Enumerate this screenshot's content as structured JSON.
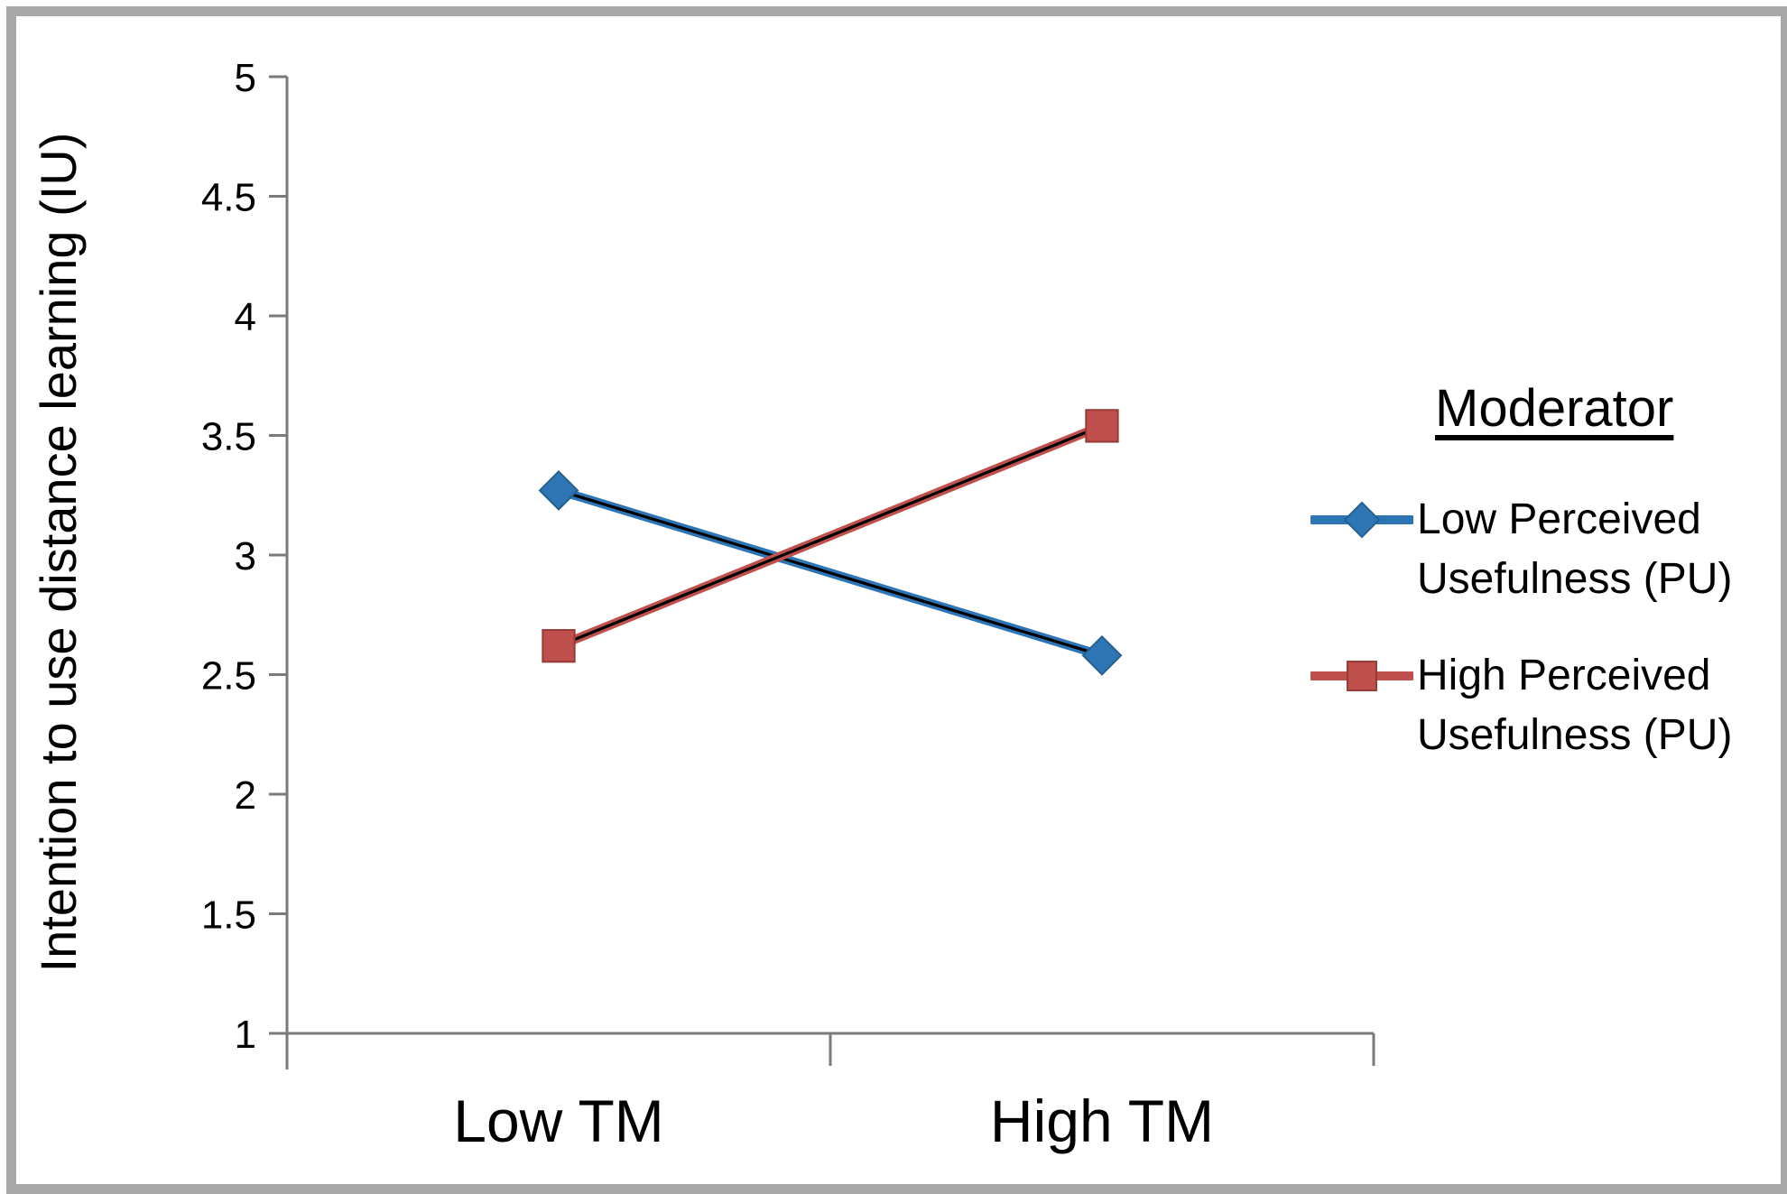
{
  "chart_data": {
    "type": "line",
    "title": "",
    "categories": [
      "Low TM",
      "High TM"
    ],
    "series": [
      {
        "name": "Low Perceived Usefulness (PU)",
        "legend_lines": [
          "Low Perceived",
          "Usefulness (PU)"
        ],
        "values": [
          3.27,
          2.58
        ],
        "color": "#2e75b6",
        "marker": "diamond",
        "marker_stroke": "#24618f"
      },
      {
        "name": "High Perceived Usefulness (PU)",
        "legend_lines": [
          "High Perceived",
          "Usefulness (PU)"
        ],
        "values": [
          2.62,
          3.54
        ],
        "color": "#c0504d",
        "marker": "square",
        "marker_stroke": "#963a36"
      }
    ],
    "xlabel": "",
    "ylabel": "Intention to use distance learning (IU)",
    "ylim": [
      1,
      5
    ],
    "ytick_step": 0.5,
    "y_tick_labels": [
      "5",
      "4.5",
      "4",
      "3.5",
      "3",
      "2.5",
      "2",
      "1.5",
      "1"
    ],
    "grid": false,
    "legend_title": "Moderator",
    "legend_position": "right",
    "line_core_color": "#000000",
    "axis_color": "#7a7a7a",
    "frame_color": "#a8a8a8"
  }
}
